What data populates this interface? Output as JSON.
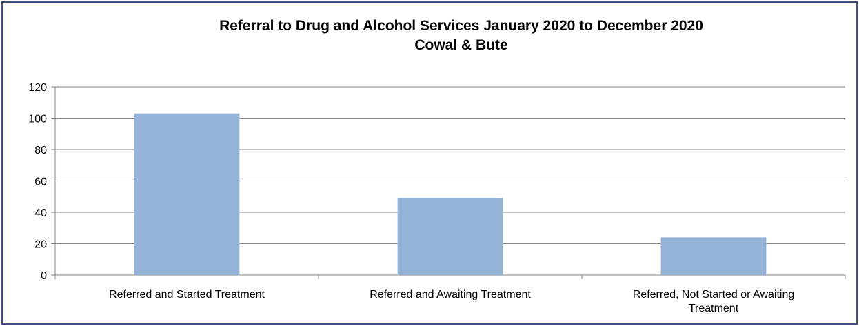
{
  "chart_data": {
    "type": "bar",
    "title": "Referral to Drug and Alcohol Services January 2020 to December 2020",
    "subtitle": "Cowal & Bute",
    "categories": [
      [
        "Referred and Started Treatment"
      ],
      [
        "Referred and Awaiting Treatment"
      ],
      [
        "Referred, Not Started or Awaiting",
        "Treatment"
      ]
    ],
    "values": [
      103,
      49,
      24
    ],
    "ylim": [
      0,
      120
    ],
    "yticks": [
      "0",
      "20",
      "40",
      "60",
      "80",
      "100",
      "120"
    ],
    "grid": true,
    "bar_color": "#95b3d7",
    "grid_color": "#868686",
    "border_color": "#3f4f7f"
  }
}
